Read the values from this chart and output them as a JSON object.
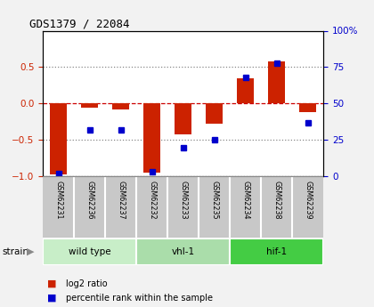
{
  "title": "GDS1379 / 22084",
  "samples": [
    "GSM62231",
    "GSM62236",
    "GSM62237",
    "GSM62232",
    "GSM62233",
    "GSM62235",
    "GSM62234",
    "GSM62238",
    "GSM62239"
  ],
  "log2_ratio": [
    -0.97,
    -0.05,
    -0.08,
    -0.95,
    -0.42,
    -0.28,
    0.35,
    0.58,
    -0.12
  ],
  "percentile_rank": [
    2,
    32,
    32,
    3,
    20,
    25,
    68,
    78,
    37
  ],
  "groups": [
    {
      "label": "wild type",
      "indices": [
        0,
        1,
        2
      ],
      "color": "#c8eec8"
    },
    {
      "label": "vhl-1",
      "indices": [
        3,
        4,
        5
      ],
      "color": "#aaddaa"
    },
    {
      "label": "hif-1",
      "indices": [
        6,
        7,
        8
      ],
      "color": "#44cc44"
    }
  ],
  "ylim_left": [
    -1.0,
    1.0
  ],
  "ylim_right": [
    0,
    100
  ],
  "yticks_left": [
    -1.0,
    -0.5,
    0.0,
    0.5
  ],
  "yticks_right": [
    0,
    25,
    50,
    75,
    100
  ],
  "ytick_right_labels": [
    "0",
    "25",
    "50",
    "75",
    "100%"
  ],
  "bar_color": "#cc2200",
  "dot_color": "#0000cc",
  "zero_line_color": "#cc0000",
  "bg_color": "#ffffff",
  "sample_box_color": "#c8c8c8",
  "strain_label": "strain",
  "legend_log2": "log2 ratio",
  "legend_pct": "percentile rank within the sample",
  "fig_bg": "#f2f2f2"
}
